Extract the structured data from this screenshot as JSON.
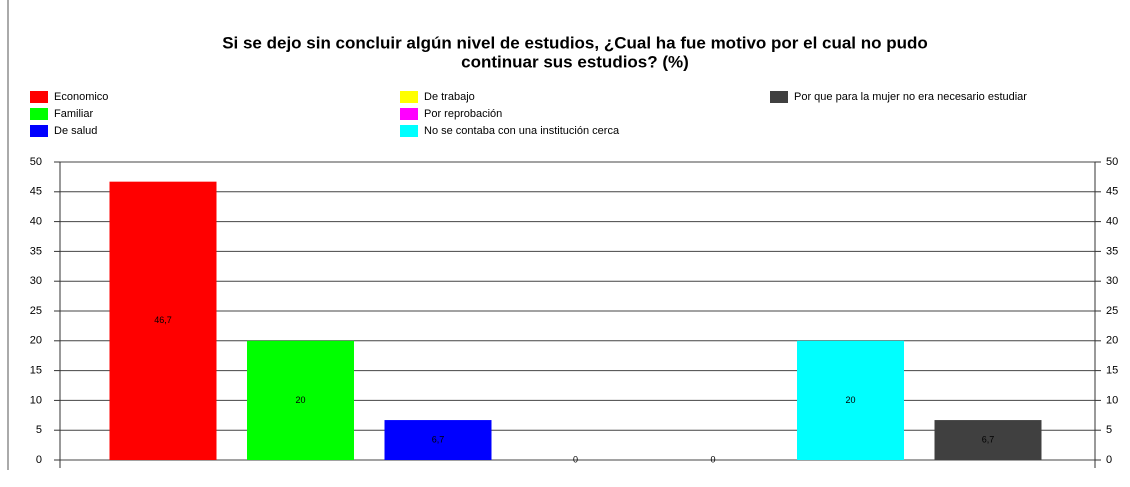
{
  "chart_data": {
    "type": "bar",
    "title": [
      "Si se dejo sin concluir algún nivel de estudios, ¿Cual ha fue motivo por el cual no pudo",
      "continuar sus estudios? (%)"
    ],
    "series": [
      {
        "name": "Economico",
        "color": "#ff0000",
        "values": [
          46.7
        ],
        "value_labels": [
          "46,7"
        ]
      },
      {
        "name": "Familiar",
        "color": "#00ff00",
        "values": [
          20
        ],
        "value_labels": [
          "20"
        ]
      },
      {
        "name": "De salud",
        "color": "#0000ff",
        "values": [
          6.7
        ],
        "value_labels": [
          "6,7"
        ]
      },
      {
        "name": "De trabajo",
        "color": "#ffff00",
        "values": [
          0
        ],
        "value_labels": [
          "0"
        ]
      },
      {
        "name": "Por reprobación",
        "color": "#ff00ff",
        "values": [
          0
        ],
        "value_labels": [
          "0"
        ]
      },
      {
        "name": "No se contaba con una institución cerca",
        "color": "#00ffff",
        "values": [
          20
        ],
        "value_labels": [
          "20"
        ]
      },
      {
        "name": "Por que para la mujer no era necesario estudiar",
        "color": "#404040",
        "values": [
          6.7
        ],
        "value_labels": [
          "6,7"
        ]
      }
    ],
    "ylim": [
      0,
      50
    ],
    "yticks": [
      0,
      5,
      10,
      15,
      20,
      25,
      30,
      35,
      40,
      45,
      50
    ],
    "grid": true
  }
}
